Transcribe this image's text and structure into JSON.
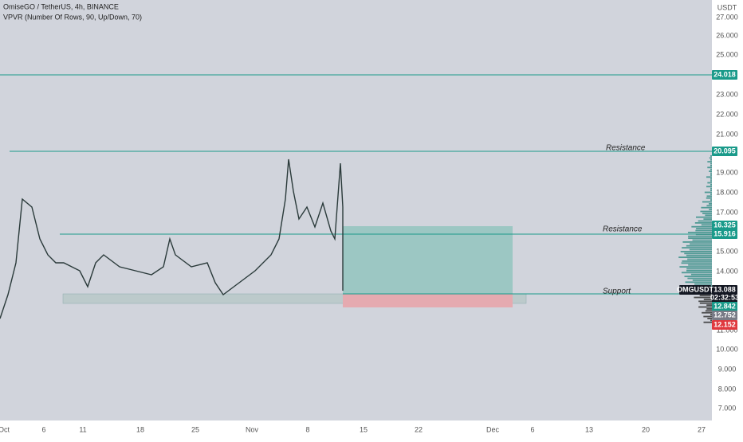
{
  "header": {
    "title": "OmiseGO / TetherUS, 4h, BINANCE",
    "indicator": "VPVR (Number Of Rows, 90, Up/Down, 70)"
  },
  "price_axis": {
    "unit": "USDT",
    "labels": [
      "27.000",
      "26.000",
      "25.000",
      "23.000",
      "22.000",
      "21.000",
      "19.000",
      "18.000",
      "17.000",
      "15.000",
      "14.000",
      "11.000",
      "10.000",
      "9.000",
      "8.000",
      "7.000"
    ]
  },
  "date_axis": [
    "Oct",
    "6",
    "11",
    "18",
    "25",
    "Nov",
    "8",
    "15",
    "22",
    "Dec",
    "6",
    "13",
    "20",
    "27"
  ],
  "annotations": [
    "Resistance",
    "Resistance",
    "Support"
  ],
  "price_tags": [
    "24.018",
    "20.095",
    "16.325",
    "15.916",
    "13.088",
    "02:32:53",
    "12.842",
    "12.752",
    "12.152"
  ],
  "symbol_tag": "OMGUSDT"
}
